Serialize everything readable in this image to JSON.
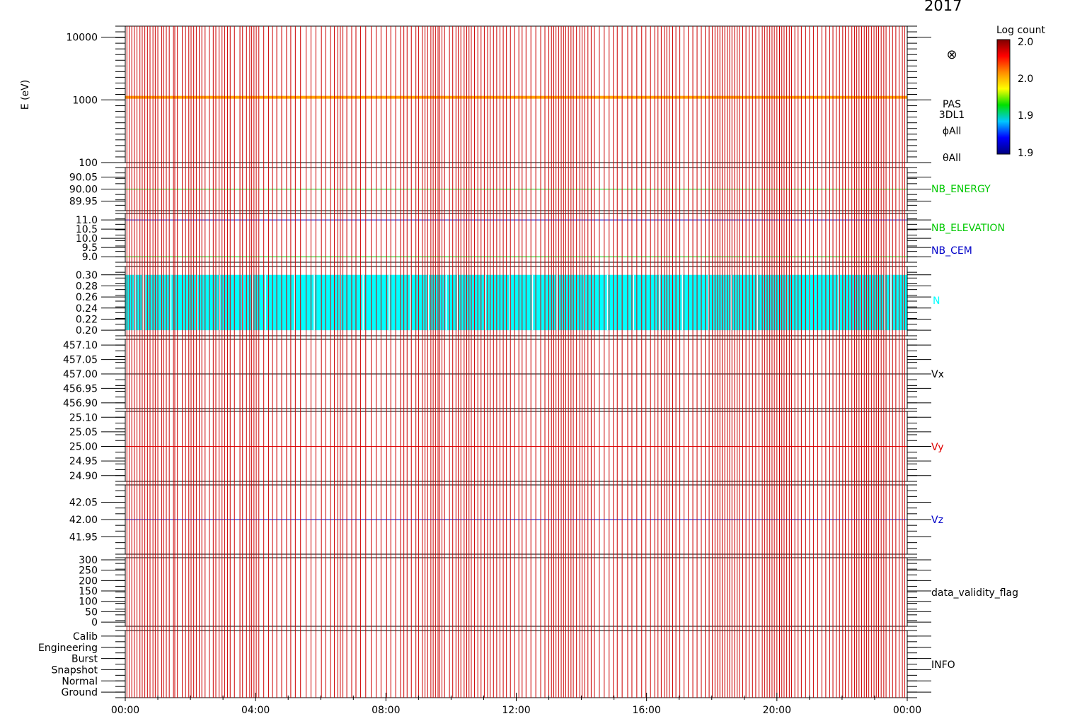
{
  "header": {
    "date_fragment": "2017"
  },
  "colorbar": {
    "title": "Log count",
    "ticks": [
      "2.0",
      "2.0",
      "1.9",
      "1.9"
    ],
    "colors": [
      "#7f0000",
      "#ff0000",
      "#ff8c00",
      "#ffff00",
      "#00e000",
      "#00c8ff",
      "#0000ff",
      "#00007f"
    ]
  },
  "time_axis": {
    "ticks": [
      "00:00",
      "04:00",
      "08:00",
      "12:00",
      "16:00",
      "20:00",
      "00:00"
    ],
    "hours": [
      0,
      4,
      8,
      12,
      16,
      20,
      24
    ]
  },
  "chart_data": [
    {
      "id": "pas-spectrogram",
      "type": "heatmap",
      "ylabel": "E (eV)",
      "yscale": "log",
      "ylim": [
        100,
        15000
      ],
      "yticks": [
        "10000",
        "1000",
        "100"
      ],
      "yvals": [
        10000,
        1000,
        100
      ],
      "right_labels": [
        "PAS",
        "3DL1",
        "ϕAll",
        "θAll"
      ],
      "symbol": "⊗",
      "band_energy_eV": 1100,
      "band_color": "#ffa500"
    },
    {
      "id": "nb-energy",
      "type": "line",
      "ylim": [
        89.91,
        90.09
      ],
      "yticks": [
        "90.05",
        "90.00",
        "89.95"
      ],
      "yvals": [
        90.05,
        90.0,
        89.95
      ],
      "series": [
        {
          "name": "NB_ENERGY",
          "value": 90.0,
          "color": "#00c800"
        }
      ]
    },
    {
      "id": "nb-elevation-cem",
      "type": "line",
      "ylim": [
        8.7,
        11.35
      ],
      "yticks": [
        "11.0",
        "10.5",
        "10.0",
        "9.5",
        "9.0"
      ],
      "yvals": [
        11.0,
        10.5,
        10.0,
        9.5,
        9.0
      ],
      "series": [
        {
          "name": "NB_ELEVATION",
          "value": 9.0,
          "color": "#00c800"
        },
        {
          "name": "NB_CEM",
          "value": 11.0,
          "color": "#0000c8"
        }
      ]
    },
    {
      "id": "density",
      "type": "area",
      "ylim": [
        0.19,
        0.315
      ],
      "yticks": [
        "0.30",
        "0.28",
        "0.26",
        "0.24",
        "0.22",
        "0.20"
      ],
      "yvals": [
        0.3,
        0.28,
        0.26,
        0.24,
        0.22,
        0.2
      ],
      "series": [
        {
          "name": "N",
          "min": 0.2,
          "max": 0.3,
          "color": "#00ffff"
        }
      ]
    },
    {
      "id": "vx",
      "type": "line",
      "ylim": [
        456.88,
        457.12
      ],
      "yticks": [
        "457.10",
        "457.05",
        "457.00",
        "456.95",
        "456.90"
      ],
      "yvals": [
        457.1,
        457.05,
        457.0,
        456.95,
        456.9
      ],
      "series": [
        {
          "name": "Vx",
          "value": 457.0,
          "color": "#000000"
        }
      ]
    },
    {
      "id": "vy",
      "type": "line",
      "ylim": [
        24.88,
        25.12
      ],
      "yticks": [
        "25.10",
        "25.05",
        "25.00",
        "24.95",
        "24.90"
      ],
      "yvals": [
        25.1,
        25.05,
        25.0,
        24.95,
        24.9
      ],
      "series": [
        {
          "name": "Vy",
          "value": 25.0,
          "color": "#e00000"
        }
      ]
    },
    {
      "id": "vz",
      "type": "line",
      "ylim": [
        41.9,
        42.1
      ],
      "yticks": [
        "42.05",
        "42.00",
        "41.95"
      ],
      "yvals": [
        42.05,
        42.0,
        41.95
      ],
      "series": [
        {
          "name": "Vz",
          "value": 42.0,
          "color": "#0000c8"
        }
      ]
    },
    {
      "id": "validity",
      "type": "line",
      "ylim": [
        -20,
        310
      ],
      "yticks": [
        "300",
        "250",
        "200",
        "150",
        "100",
        "50",
        "0"
      ],
      "yvals": [
        300,
        250,
        200,
        150,
        100,
        50,
        0
      ],
      "series": [
        {
          "name": "data_validity_flag",
          "color": "#000000"
        }
      ]
    },
    {
      "id": "info",
      "type": "line",
      "ylim": [
        -0.5,
        5.5
      ],
      "yticks": [
        "Calib",
        "Engineering",
        "Burst",
        "Snapshot",
        "Normal",
        "Ground"
      ],
      "yvals": [
        5,
        4,
        3,
        2,
        1,
        0
      ],
      "series": [
        {
          "name": "INFO",
          "color": "#000000"
        }
      ]
    }
  ],
  "gap_markers": {
    "color": "#cc0000",
    "hours": [
      0.05,
      0.12,
      0.2,
      0.28,
      0.36,
      0.45,
      0.52,
      0.6,
      0.68,
      0.76,
      0.85,
      0.92,
      1.0,
      1.12,
      1.18,
      1.26,
      1.35,
      1.48,
      1.52,
      1.6,
      1.75,
      1.85,
      1.95,
      2.02,
      2.1,
      2.18,
      2.27,
      2.35,
      2.45,
      2.58,
      2.7,
      2.78,
      2.88,
      2.97,
      3.05,
      3.14,
      3.22,
      3.35,
      3.52,
      3.6,
      3.72,
      3.82,
      3.88,
      3.95,
      4.02,
      4.1,
      4.25,
      4.4,
      4.52,
      4.65,
      4.8,
      4.95,
      5.08,
      5.22,
      5.38,
      5.55,
      5.7,
      5.85,
      6.02,
      6.15,
      6.3,
      6.42,
      6.52,
      6.6,
      6.68,
      6.8,
      6.95,
      7.08,
      7.22,
      7.38,
      7.55,
      7.7,
      7.85,
      8.02,
      8.15,
      8.3,
      8.45,
      8.55,
      8.65,
      8.78,
      8.92,
      9.0,
      9.12,
      9.2,
      9.28,
      9.38,
      9.45,
      9.52,
      9.6,
      9.65,
      9.72,
      9.8,
      9.95,
      10.05,
      10.15,
      10.22,
      10.3,
      10.4,
      10.48,
      10.55,
      10.62,
      10.72,
      10.82,
      10.92,
      11.02,
      11.12,
      11.2,
      11.3,
      11.4,
      11.5,
      11.6,
      11.7,
      11.82,
      11.95,
      12.08,
      12.18,
      12.3,
      12.45,
      12.6,
      12.75,
      12.88,
      13.0,
      13.08,
      13.15,
      13.22,
      13.3,
      13.38,
      13.45,
      13.52,
      13.6,
      13.68,
      13.75,
      13.85,
      13.95,
      14.02,
      14.1,
      14.2,
      14.3,
      14.4,
      14.55,
      14.7,
      14.85,
      14.98,
      15.1,
      15.25,
      15.42,
      15.55,
      15.7,
      15.85,
      15.98,
      16.12,
      16.25,
      16.35,
      16.45,
      16.55,
      16.62,
      16.7,
      16.8,
      16.9,
      17.02,
      17.15,
      17.28,
      17.42,
      17.55,
      17.68,
      17.8,
      17.92,
      18.02,
      18.1,
      18.18,
      18.25,
      18.32,
      18.4,
      18.48,
      18.55,
      18.62,
      18.7,
      18.78,
      18.85,
      18.95,
      19.05,
      19.15,
      19.25,
      19.35,
      19.45,
      19.55,
      19.62,
      19.7,
      19.78,
      19.85,
      19.92,
      20.0,
      20.08,
      20.15,
      20.22,
      20.3,
      20.38,
      20.45,
      20.55,
      20.65,
      20.75,
      20.88,
      21.0,
      21.12,
      21.25,
      21.38,
      21.5,
      21.62,
      21.72,
      21.82,
      21.92,
      22.02,
      22.1,
      22.2,
      22.3,
      22.38,
      22.45,
      22.52,
      22.6,
      22.68,
      22.75,
      22.82,
      22.9,
      22.98,
      23.05,
      23.12,
      23.2,
      23.28,
      23.35,
      23.45,
      23.55,
      23.65,
      23.75,
      23.85,
      23.92
    ]
  },
  "density_dropouts_hours": [
    0.3,
    0.55,
    0.6,
    1.4,
    2.2,
    2.9,
    3.6,
    3.9,
    4.3,
    5.2,
    5.8,
    6.6,
    7.3,
    8.1,
    8.75,
    9.3,
    9.85,
    10.2,
    11.05,
    11.8,
    12.5,
    13.25,
    14.1,
    14.8,
    15.6,
    16.4,
    17.1,
    17.9,
    18.6,
    19.4,
    20.3,
    21.0,
    21.9,
    22.6,
    23.3,
    23.5
  ]
}
